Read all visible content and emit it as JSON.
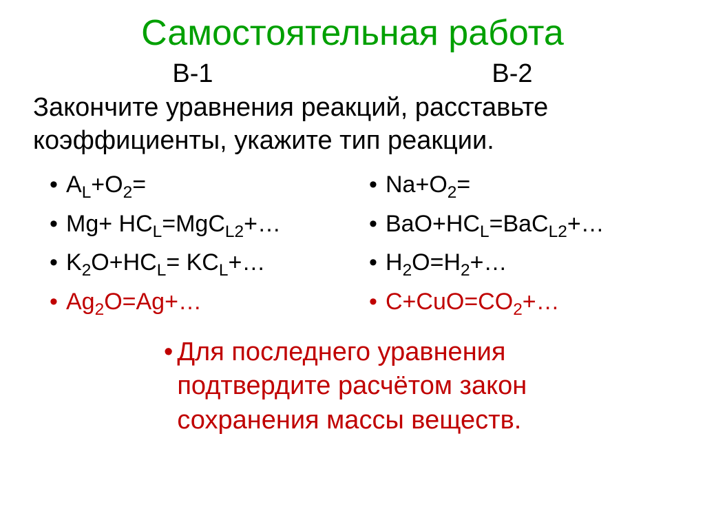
{
  "colors": {
    "title": "#00a000",
    "body": "#000000",
    "accent": "#c00000"
  },
  "title": "Самостоятельная работа",
  "variant1_label": "В-1",
  "variant2_label": "В-2",
  "task_line1": "Закончите уравнения реакций, расставьте",
  "task_line2": "коэффициенты, укажите тип реакции.",
  "col1": {
    "eq1": {
      "text_html": "A<span class='sub'>L</span>+O<span class='sub'>2</span>=",
      "color": "#000000"
    },
    "eq2": {
      "text_html": "Mg+ HC<span class='sub'>L</span>=MgC<span class='sub'>L2</span>+…",
      "color": "#000000"
    },
    "eq3": {
      "text_html": "K<span class='sub'>2</span>O+HC<span class='sub'>L</span>= KC<span class='sub'>L</span>+…",
      "color": "#000000"
    },
    "eq4": {
      "text_html": "Ag<span class='sub'>2</span>O=Ag+…",
      "color": "#c00000"
    }
  },
  "col2": {
    "eq1": {
      "text_html": "Na+O<span class='sub'>2</span>=",
      "color": "#000000"
    },
    "eq2": {
      "text_html": "BaO+HC<span class='sub'>L</span>=BaC<span class='sub'>L2</span>+…",
      "color": "#000000"
    },
    "eq3": {
      "text_html": "H<span class='sub'>2</span>O=H<span class='sub'>2</span>+…",
      "color": "#000000"
    },
    "eq4": {
      "text_html": "C+CuO=CO<span class='sub'>2</span>+…",
      "color": "#c00000"
    }
  },
  "note_line1": "Для последнего уравнения",
  "note_line2": "подтвердите расчётом закон",
  "note_line3": "сохранения массы веществ."
}
